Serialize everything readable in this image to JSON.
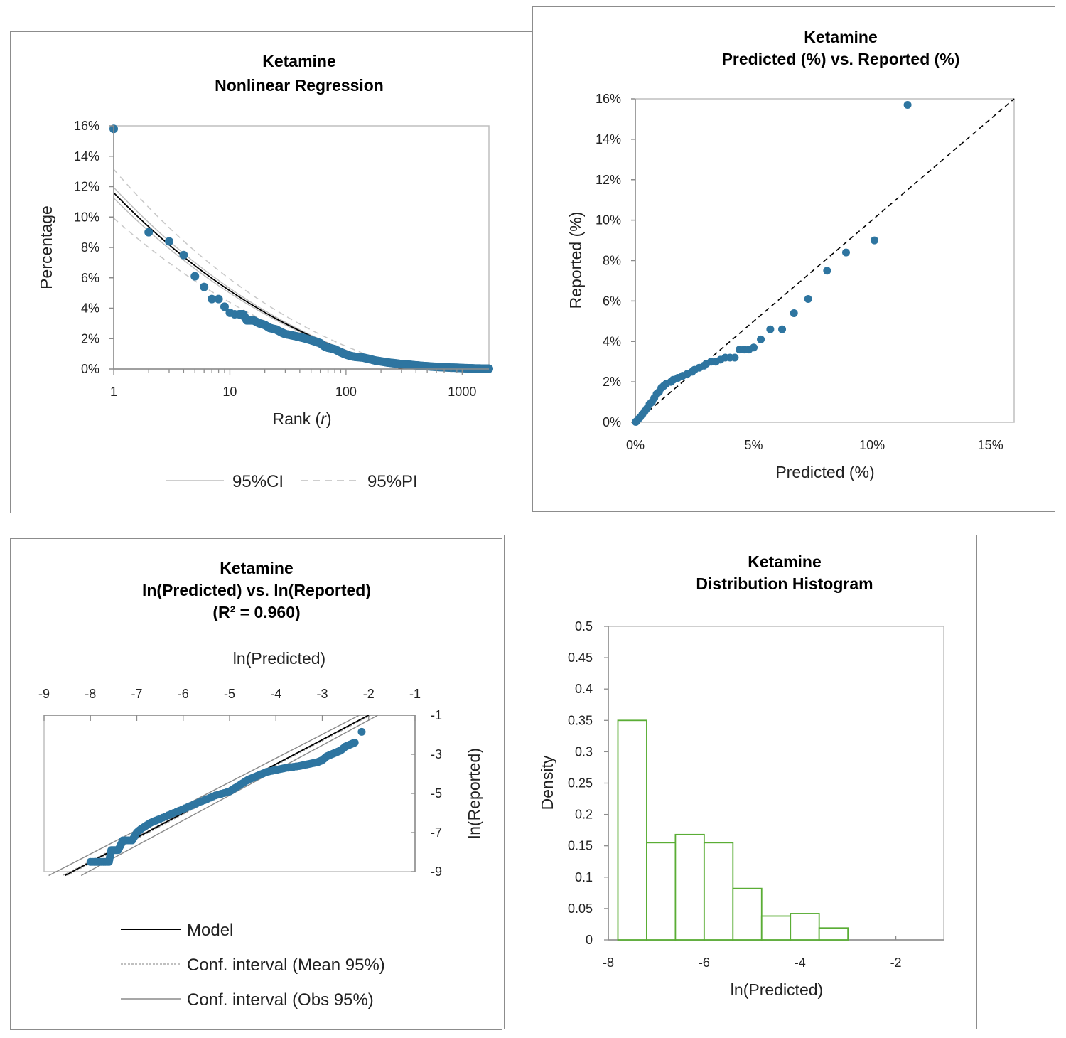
{
  "colors": {
    "point": "#2e75a0",
    "frame": "#bfbfbf",
    "hist": "#5aad35",
    "model": "#000000",
    "band": "#9a9a9a"
  },
  "charts": [
    {
      "type": "scatter",
      "title": [
        "Ketamine",
        "Nonlinear Regression"
      ],
      "xlabel": "Rank (r)",
      "xlabel_main": "Rank (",
      "xlabel_var": "r",
      "xlabel_end": ")",
      "ylabel": "Percentage",
      "x_scale": "log",
      "xlim": [
        1,
        1700
      ],
      "ylim": [
        0,
        16
      ],
      "x_ticks": [
        "1",
        "10",
        "100",
        "1000"
      ],
      "y_ticks": [
        "0%",
        "2%",
        "4%",
        "6%",
        "8%",
        "10%",
        "12%",
        "14%",
        "16%"
      ],
      "legend": [
        "95%CI",
        "95%PI"
      ],
      "legend_position": "bottom",
      "model_fit": {
        "a": 11.6,
        "b": 0.45,
        "tail": 0.0
      },
      "points": [
        [
          1,
          15.8
        ],
        [
          2,
          9.0
        ],
        [
          3,
          8.4
        ],
        [
          4,
          7.5
        ],
        [
          5,
          6.1
        ],
        [
          6,
          5.4
        ],
        [
          7,
          4.6
        ],
        [
          8,
          4.6
        ],
        [
          9,
          4.1
        ],
        [
          10,
          3.7
        ],
        [
          11,
          3.6
        ],
        [
          12,
          3.6
        ],
        [
          13,
          3.6
        ],
        [
          14,
          3.2
        ],
        [
          16,
          3.2
        ],
        [
          18,
          3.0
        ],
        [
          20,
          2.9
        ],
        [
          22,
          2.7
        ],
        [
          25,
          2.6
        ],
        [
          28,
          2.4
        ],
        [
          30,
          2.3
        ],
        [
          35,
          2.2
        ],
        [
          40,
          2.1
        ],
        [
          45,
          2.0
        ],
        [
          50,
          1.9
        ],
        [
          55,
          1.8
        ],
        [
          60,
          1.7
        ],
        [
          65,
          1.5
        ],
        [
          70,
          1.4
        ],
        [
          80,
          1.3
        ],
        [
          90,
          1.1
        ],
        [
          100,
          0.95
        ],
        [
          110,
          0.85
        ],
        [
          120,
          0.8
        ],
        [
          140,
          0.75
        ],
        [
          160,
          0.65
        ],
        [
          180,
          0.55
        ],
        [
          200,
          0.5
        ],
        [
          230,
          0.42
        ],
        [
          260,
          0.38
        ],
        [
          300,
          0.32
        ],
        [
          350,
          0.28
        ],
        [
          400,
          0.24
        ],
        [
          450,
          0.2
        ],
        [
          500,
          0.18
        ],
        [
          600,
          0.14
        ],
        [
          700,
          0.11
        ],
        [
          800,
          0.09
        ],
        [
          900,
          0.08
        ],
        [
          1000,
          0.06
        ],
        [
          1100,
          0.05
        ],
        [
          1200,
          0.04
        ],
        [
          1300,
          0.03
        ],
        [
          1400,
          0.03
        ],
        [
          1500,
          0.02
        ],
        [
          1600,
          0.02
        ],
        [
          1700,
          0.02
        ]
      ]
    },
    {
      "type": "scatter",
      "title": [
        "Ketamine",
        "Predicted (%) vs. Reported (%)"
      ],
      "xlabel": "Predicted (%)",
      "ylabel": "Reported (%)",
      "xlim": [
        0,
        16
      ],
      "ylim": [
        0,
        16
      ],
      "x_ticks": [
        "0%",
        "5%",
        "10%",
        "15%"
      ],
      "y_ticks": [
        "0%",
        "2%",
        "4%",
        "6%",
        "8%",
        "10%",
        "12%",
        "14%",
        "16%"
      ],
      "reference_line": "y = x, dashed",
      "points": [
        [
          11.5,
          15.7
        ],
        [
          10.1,
          9.0
        ],
        [
          8.9,
          8.4
        ],
        [
          8.1,
          7.5
        ],
        [
          7.3,
          6.1
        ],
        [
          6.7,
          5.4
        ],
        [
          6.2,
          4.6
        ],
        [
          5.7,
          4.6
        ],
        [
          5.3,
          4.1
        ],
        [
          5.0,
          3.7
        ],
        [
          4.8,
          3.6
        ],
        [
          4.6,
          3.6
        ],
        [
          4.4,
          3.6
        ],
        [
          4.2,
          3.2
        ],
        [
          4.0,
          3.2
        ],
        [
          3.8,
          3.2
        ],
        [
          3.6,
          3.1
        ],
        [
          3.4,
          3.0
        ],
        [
          3.2,
          3.0
        ],
        [
          3.0,
          2.9
        ],
        [
          2.9,
          2.8
        ],
        [
          2.7,
          2.7
        ],
        [
          2.5,
          2.6
        ],
        [
          2.4,
          2.5
        ],
        [
          2.2,
          2.4
        ],
        [
          2.0,
          2.3
        ],
        [
          1.8,
          2.2
        ],
        [
          1.6,
          2.1
        ],
        [
          1.5,
          2.0
        ],
        [
          1.3,
          1.9
        ],
        [
          1.2,
          1.8
        ],
        [
          1.1,
          1.7
        ],
        [
          1.0,
          1.5
        ],
        [
          0.9,
          1.4
        ],
        [
          0.8,
          1.2
        ],
        [
          0.7,
          1.0
        ],
        [
          0.6,
          0.9
        ],
        [
          0.5,
          0.7
        ],
        [
          0.4,
          0.55
        ],
        [
          0.3,
          0.4
        ],
        [
          0.2,
          0.25
        ],
        [
          0.12,
          0.15
        ],
        [
          0.05,
          0.05
        ],
        [
          0.02,
          0.02
        ]
      ]
    },
    {
      "type": "scatter",
      "title": [
        "Ketamine",
        "ln(Predicted) vs. ln(Reported)",
        "(R² = 0.960)"
      ],
      "xlabel": "ln(Predicted)",
      "ylabel": "ln(Reported)",
      "xlim": [
        -9,
        -1
      ],
      "ylim": [
        -9,
        -1
      ],
      "x_ticks": [
        "-9",
        "-8",
        "-7",
        "-6",
        "-5",
        "-4",
        "-3",
        "-2",
        "-1"
      ],
      "y_ticks": [
        "-1",
        "-3",
        "-5",
        "-7",
        "-9"
      ],
      "x_axis_position": "top",
      "y_axis_position": "right",
      "legend": [
        "Model",
        "Conf. interval (Mean 95%)",
        "Conf. interval (Obs 95%)"
      ],
      "legend_position": "bottom",
      "points": [
        [
          -2.15,
          -1.85
        ],
        [
          -2.3,
          -2.4
        ],
        [
          -2.4,
          -2.5
        ],
        [
          -2.5,
          -2.6
        ],
        [
          -2.6,
          -2.8
        ],
        [
          -2.7,
          -2.9
        ],
        [
          -2.8,
          -3.0
        ],
        [
          -2.9,
          -3.1
        ],
        [
          -3.0,
          -3.3
        ],
        [
          -3.1,
          -3.4
        ],
        [
          -3.3,
          -3.5
        ],
        [
          -3.5,
          -3.6
        ],
        [
          -3.8,
          -3.7
        ],
        [
          -4.0,
          -3.8
        ],
        [
          -4.2,
          -3.9
        ],
        [
          -4.4,
          -4.1
        ],
        [
          -4.6,
          -4.3
        ],
        [
          -4.8,
          -4.6
        ],
        [
          -5.0,
          -4.9
        ],
        [
          -5.3,
          -5.1
        ],
        [
          -5.6,
          -5.4
        ],
        [
          -5.9,
          -5.7
        ],
        [
          -6.2,
          -6.0
        ],
        [
          -6.5,
          -6.3
        ],
        [
          -6.7,
          -6.5
        ],
        [
          -6.9,
          -6.8
        ],
        [
          -7.0,
          -7.0
        ],
        [
          -7.1,
          -7.4
        ],
        [
          -7.3,
          -7.4
        ],
        [
          -7.4,
          -7.9
        ],
        [
          -7.55,
          -7.9
        ],
        [
          -7.6,
          -8.5
        ],
        [
          -7.8,
          -8.5
        ],
        [
          -8.0,
          -8.5
        ]
      ]
    },
    {
      "type": "bar",
      "title": [
        "Ketamine",
        "Distribution Histogram"
      ],
      "xlabel": "ln(Predicted)",
      "ylabel": "Density",
      "xlim": [
        -8,
        -1
      ],
      "ylim": [
        0,
        0.5
      ],
      "x_ticks": [
        "-8",
        "-6",
        "-4",
        "-2"
      ],
      "y_ticks": [
        "0",
        "0.05",
        "0.1",
        "0.15",
        "0.2",
        "0.25",
        "0.3",
        "0.35",
        "0.4",
        "0.45",
        "0.5"
      ],
      "bin_edges": [
        -7.8,
        -7.2,
        -6.6,
        -6.0,
        -5.4,
        -4.8,
        -4.2,
        -3.6,
        -3.0
      ],
      "values": [
        0.35,
        0.155,
        0.168,
        0.155,
        0.082,
        0.038,
        0.042,
        0.019
      ]
    }
  ]
}
